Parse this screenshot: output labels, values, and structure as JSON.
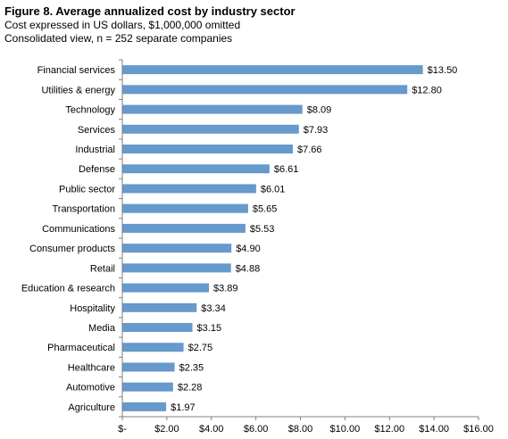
{
  "figure": {
    "title": "Figure 8. Average annualized cost by industry sector",
    "subtitle_1": "Cost expressed in US dollars, $1,000,000 omitted",
    "subtitle_2": "Consolidated view, n = 252 separate companies"
  },
  "chart_data": {
    "type": "bar",
    "orientation": "horizontal",
    "title": "Figure 8. Average annualized cost by industry sector",
    "categories": [
      "Financial services",
      "Utilities & energy",
      "Technology",
      "Services",
      "Industrial",
      "Defense",
      "Public sector",
      "Transportation",
      "Communications",
      "Consumer products",
      "Retail",
      "Education & research",
      "Hospitality",
      "Media",
      "Pharmaceutical",
      "Healthcare",
      "Automotive",
      "Agriculture"
    ],
    "values": [
      13.5,
      12.8,
      8.09,
      7.93,
      7.66,
      6.61,
      6.01,
      5.65,
      5.53,
      4.9,
      4.88,
      3.89,
      3.34,
      3.15,
      2.75,
      2.35,
      2.28,
      1.97
    ],
    "value_labels": [
      "$13.50",
      "$12.80",
      "$8.09",
      "$7.93",
      "$7.66",
      "$6.61",
      "$6.01",
      "$5.65",
      "$5.53",
      "$4.90",
      "$4.88",
      "$3.89",
      "$3.34",
      "$3.15",
      "$2.75",
      "$2.35",
      "$2.28",
      "$1.97"
    ],
    "x_ticks": [
      0,
      2,
      4,
      6,
      8,
      10,
      12,
      14,
      16
    ],
    "x_tick_labels": [
      "$-",
      "$2.00",
      "$4.00",
      "$6.00",
      "$8.00",
      "$10.00",
      "$12.00",
      "$14.00",
      "$16.00"
    ],
    "xlim": [
      0,
      16
    ],
    "xlabel": "",
    "ylabel": "",
    "grid": false,
    "legend": "none",
    "bar_color": "#6699cc",
    "axis_color": "#7f7f7f"
  }
}
